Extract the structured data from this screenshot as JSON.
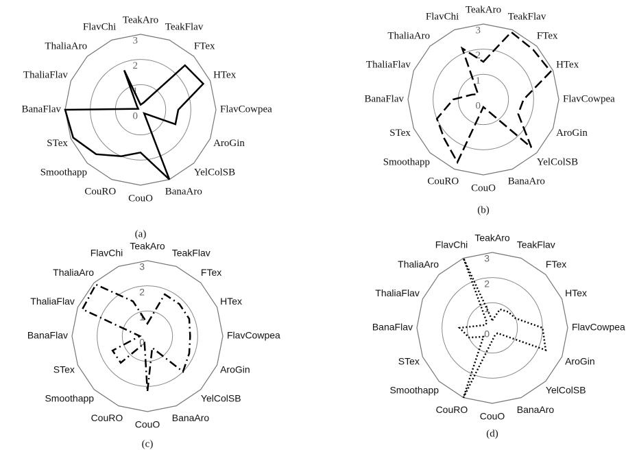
{
  "chart_data": [
    {
      "type": "radar",
      "caption": "(a)",
      "font": "serif",
      "line_style": "solid",
      "color": "#000000",
      "categories": [
        "TeakAro",
        "TeakFlav",
        "FTex",
        "HTex",
        "FlavCowpea",
        "AroGin",
        "YelColSB",
        "BanaAro",
        "CouO",
        "CouRO",
        "Smoothapp",
        "STex",
        "BanaFlav",
        "ThaliaFlav",
        "ThaliaAro",
        "FlavChi"
      ],
      "values": [
        0.2,
        0.3,
        2.5,
        2.7,
        1.5,
        1.5,
        0.2,
        3,
        1.7,
        2,
        2.5,
        2.9,
        3,
        0.1,
        0.2,
        1.7
      ],
      "rlim": [
        0,
        3
      ],
      "rticks": [
        0,
        1,
        2,
        3
      ]
    },
    {
      "type": "radar",
      "caption": "(b)",
      "font": "serif",
      "line_style": "dashed",
      "color": "#000000",
      "categories": [
        "TeakAro",
        "TeakFlav",
        "FTex",
        "HTex",
        "FlavCowpea",
        "AroGin",
        "YelColSB",
        "BanaAro",
        "CouO",
        "CouRO",
        "Smoothapp",
        "STex",
        "BanaFlav",
        "ThaliaFlav",
        "ThaliaAro",
        "FlavChi"
      ],
      "values": [
        1.5,
        2.9,
        2.8,
        2.9,
        1.6,
        1.5,
        2.7,
        0.5,
        0.3,
        2.7,
        2.2,
        2,
        1.2,
        0.5,
        0.3,
        2.2
      ],
      "rlim": [
        0,
        3
      ],
      "rticks": [
        0,
        1,
        2,
        3
      ]
    },
    {
      "type": "radar",
      "caption": "(c)",
      "font": "sans",
      "line_style": "dash-dot",
      "color": "#000000",
      "categories": [
        "TeakAro",
        "TeakFlav",
        "FTex",
        "HTex",
        "FlavCowpea",
        "AroGin",
        "YelColSB",
        "BanaAro",
        "CouO",
        "CouRO",
        "Smoothapp",
        "STex",
        "BanaFlav",
        "ThaliaFlav",
        "ThaliaAro",
        "FlavChi"
      ],
      "values": [
        0.5,
        1.8,
        1.8,
        1.8,
        1.7,
        1.8,
        2,
        0.5,
        2.2,
        0.3,
        1.5,
        1.5,
        0.3,
        2.8,
        2.9,
        1.5
      ],
      "rlim": [
        0,
        3
      ],
      "rticks": [
        0,
        1,
        2,
        3
      ]
    },
    {
      "type": "radar",
      "caption": "(d)",
      "font": "sans",
      "line_style": "dotted",
      "color": "#000000",
      "categories": [
        "TeakAro",
        "TeakFlav",
        "FTex",
        "HTex",
        "FlavCowpea",
        "AroGin",
        "YelColSB",
        "BanaAro",
        "CouO",
        "CouRO",
        "Smoothapp",
        "STex",
        "BanaFlav",
        "ThaliaFlav",
        "ThaliaAro",
        "FlavChi"
      ],
      "values": [
        0.3,
        0.8,
        0.9,
        1,
        2,
        2.3,
        0.3,
        0.3,
        0.5,
        3,
        0.5,
        1,
        1.3,
        0.3,
        0.3,
        3
      ],
      "rlim": [
        0,
        3
      ],
      "rticks": [
        0,
        1,
        2,
        3
      ]
    }
  ]
}
